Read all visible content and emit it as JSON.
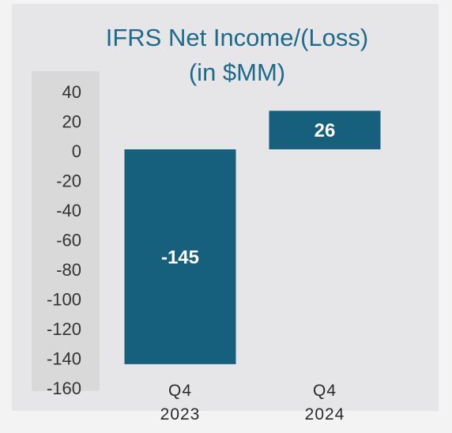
{
  "chart_data": {
    "type": "bar",
    "title": [
      "IFRS Net Income/(Loss)",
      "(in $MM)"
    ],
    "categories": [
      "Q4 2023",
      "Q4 2024"
    ],
    "values": [
      -145,
      26
    ],
    "color": "#165f7d",
    "ylim": [
      -160,
      40
    ],
    "yticks": [
      40,
      20,
      0,
      -20,
      -40,
      -60,
      -80,
      -100,
      -120,
      -140,
      -160
    ],
    "grid": false
  }
}
